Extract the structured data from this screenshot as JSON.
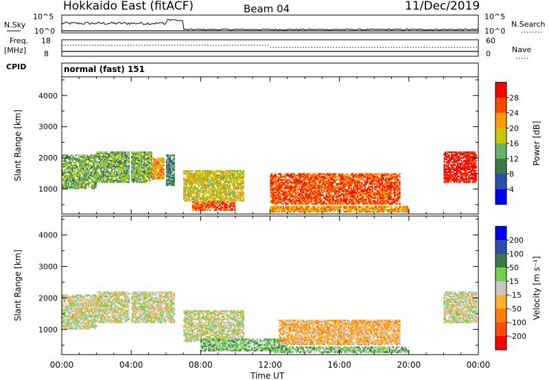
{
  "header": {
    "station": "Hokkaido East (fitACF)",
    "beam": "Beam 04",
    "date": "11/Dec/2019"
  },
  "status": {
    "nsky_label": "N.Sky",
    "nsky_ticks": [
      "10^5",
      "10^0"
    ],
    "nsearch_label": "N.Search",
    "nsearch_ticks": [
      "10^5",
      "10^0"
    ],
    "freq_label_1": "Freq.",
    "freq_label_2": "[MHz]",
    "freq_ticks": [
      "18",
      "8"
    ],
    "nave_label": "Nave",
    "nave_ticks": [
      "60",
      "0"
    ],
    "cpid_label": "CPID",
    "cpid_value": "normal (fast) 151"
  },
  "chart_data": [
    {
      "type": "heatmap",
      "name": "power-panel",
      "ylabel": "Slant Range [km]",
      "yticks": [
        1000,
        2000,
        3000,
        4000
      ],
      "ylim": [
        200,
        4600
      ],
      "xlim": [
        0,
        24
      ],
      "colorbar": {
        "label": "Power [dB]",
        "ticks": [
          "28",
          "24",
          "20",
          "16",
          "12",
          "8",
          "4"
        ],
        "colors": [
          "#ff0000",
          "#ff4b00",
          "#ff9a00",
          "#c8c800",
          "#6ab26a",
          "#3a7a4a",
          "#2a50b0",
          "#0000ff"
        ]
      },
      "echo_regions": [
        {
          "t0": 0.0,
          "t1": 2.0,
          "r0": 1000,
          "r1": 2100,
          "level": 4
        },
        {
          "t0": 2.0,
          "t1": 3.9,
          "r0": 1200,
          "r1": 2200,
          "level": 4
        },
        {
          "t0": 4.0,
          "t1": 5.2,
          "r0": 1200,
          "r1": 2200,
          "level": 4
        },
        {
          "t0": 5.2,
          "t1": 5.9,
          "r0": 1300,
          "r1": 2000,
          "level": 2
        },
        {
          "t0": 6.0,
          "t1": 6.5,
          "r0": 1100,
          "r1": 2100,
          "level": 5
        },
        {
          "t0": 7.0,
          "t1": 10.5,
          "r0": 600,
          "r1": 1600,
          "level": 3
        },
        {
          "t0": 7.5,
          "t1": 10.0,
          "r0": 300,
          "r1": 600,
          "level": 1
        },
        {
          "t0": 12.0,
          "t1": 19.5,
          "r0": 500,
          "r1": 1500,
          "level": 1
        },
        {
          "t0": 12.0,
          "t1": 20.0,
          "r0": 250,
          "r1": 450,
          "level": 2
        },
        {
          "t0": 22.0,
          "t1": 23.9,
          "r0": 1200,
          "r1": 2200,
          "level": 0
        }
      ]
    },
    {
      "type": "heatmap",
      "name": "velocity-panel",
      "ylabel": "Slant Range [km]",
      "xlabel": "Time UT",
      "xticks": [
        "00:00",
        "04:00",
        "08:00",
        "12:00",
        "16:00",
        "20:00",
        "00:00"
      ],
      "yticks": [
        1000,
        2000,
        3000,
        4000
      ],
      "ylim": [
        200,
        4600
      ],
      "xlim": [
        0,
        24
      ],
      "colorbar": {
        "label": "Velocity [m s⁻¹]",
        "ticks": [
          "200",
          "100",
          "50",
          "15",
          "-15",
          "-50",
          "-100",
          "-200"
        ],
        "colors": [
          "#0000ff",
          "#2a50b0",
          "#3a7a4a",
          "#6ed24a",
          "#c8c8c8",
          "#ffb030",
          "#ff8000",
          "#ff4b00",
          "#ff0000"
        ]
      },
      "echo_regions": [
        {
          "t0": 0.0,
          "t1": 2.0,
          "r0": 1000,
          "r1": 2100,
          "color": 4
        },
        {
          "t0": 2.0,
          "t1": 3.9,
          "r0": 1200,
          "r1": 2200,
          "color": 4
        },
        {
          "t0": 4.0,
          "t1": 6.5,
          "r0": 1200,
          "r1": 2200,
          "color": 4
        },
        {
          "t0": 7.0,
          "t1": 10.5,
          "r0": 600,
          "r1": 1600,
          "color": 4
        },
        {
          "t0": 8.0,
          "t1": 13.0,
          "r0": 300,
          "r1": 700,
          "color": 3
        },
        {
          "t0": 12.5,
          "t1": 19.5,
          "r0": 500,
          "r1": 1300,
          "color": 5
        },
        {
          "t0": 12.0,
          "t1": 20.0,
          "r0": 250,
          "r1": 450,
          "color": 3
        },
        {
          "t0": 22.0,
          "t1": 23.9,
          "r0": 1200,
          "r1": 2200,
          "color": 4
        }
      ]
    }
  ]
}
